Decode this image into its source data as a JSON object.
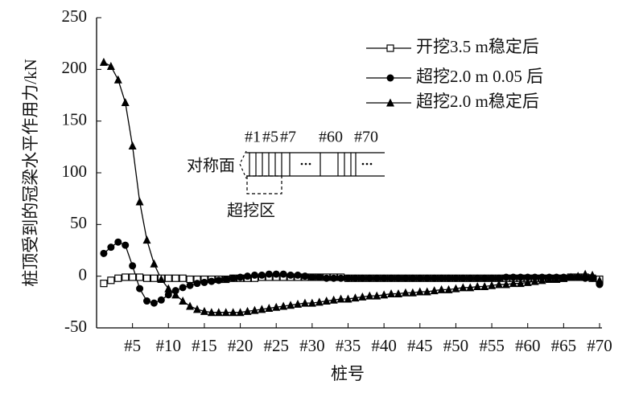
{
  "chart_data": {
    "type": "line",
    "x_label": "桩号",
    "y_label": "桩顶受到的冠梁水平作用力/kN",
    "x": [
      1,
      2,
      3,
      4,
      5,
      6,
      7,
      8,
      9,
      10,
      11,
      12,
      13,
      14,
      15,
      16,
      17,
      18,
      19,
      20,
      21,
      22,
      23,
      24,
      25,
      26,
      27,
      28,
      29,
      30,
      31,
      32,
      33,
      34,
      35,
      36,
      37,
      38,
      39,
      40,
      41,
      42,
      43,
      44,
      45,
      46,
      47,
      48,
      49,
      50,
      51,
      52,
      53,
      54,
      55,
      56,
      57,
      58,
      59,
      60,
      61,
      62,
      63,
      64,
      65,
      66,
      67,
      68,
      69,
      70
    ],
    "series": [
      {
        "name": "开挖3.5 m稳定后",
        "color": "#000000",
        "marker": "square-open",
        "values": [
          -7,
          -4,
          -2,
          -1,
          -1,
          -1,
          -2,
          -2,
          -2,
          -2,
          -2,
          -2,
          -3,
          -3,
          -3,
          -3,
          -3,
          -3,
          -2,
          -2,
          -2,
          -2,
          -1,
          -1,
          -1,
          -1,
          -1,
          -1,
          -1,
          -1,
          -1,
          -1,
          -1,
          -1,
          -2,
          -2,
          -2,
          -2,
          -2,
          -2,
          -2,
          -2,
          -2,
          -2,
          -2,
          -2,
          -2,
          -2,
          -2,
          -2,
          -2,
          -2,
          -2,
          -2,
          -2,
          -2,
          -2,
          -2,
          -2,
          -2,
          -2,
          -2,
          -2,
          -2,
          -2,
          -1,
          -1,
          -1,
          -2,
          -3
        ]
      },
      {
        "name": "超挖2.0 m 0.05 后",
        "color": "#000000",
        "marker": "circle",
        "values": [
          22,
          28,
          33,
          30,
          10,
          -12,
          -24,
          -26,
          -23,
          -18,
          -14,
          -11,
          -9,
          -7,
          -6,
          -5,
          -4,
          -3,
          -2,
          -1,
          0,
          1,
          1,
          2,
          2,
          2,
          1,
          1,
          0,
          -1,
          -1,
          -2,
          -2,
          -2,
          -2,
          -2,
          -2,
          -2,
          -2,
          -2,
          -2,
          -2,
          -2,
          -2,
          -2,
          -2,
          -2,
          -2,
          -2,
          -2,
          -2,
          -2,
          -2,
          -2,
          -2,
          -2,
          -1,
          -1,
          -1,
          -1,
          -1,
          -1,
          -1,
          -1,
          -1,
          -1,
          -1,
          -2,
          -2,
          -8
        ]
      },
      {
        "name": "超挖2.0 m稳定后",
        "color": "#000000",
        "marker": "triangle",
        "values": [
          207,
          203,
          190,
          168,
          126,
          72,
          35,
          12,
          -3,
          -12,
          -18,
          -24,
          -29,
          -32,
          -34,
          -35,
          -35,
          -35,
          -35,
          -35,
          -34,
          -33,
          -32,
          -31,
          -30,
          -29,
          -28,
          -27,
          -26,
          -26,
          -25,
          -24,
          -23,
          -22,
          -22,
          -21,
          -20,
          -19,
          -19,
          -18,
          -17,
          -17,
          -16,
          -16,
          -15,
          -15,
          -14,
          -13,
          -13,
          -12,
          -11,
          -11,
          -10,
          -10,
          -9,
          -8,
          -8,
          -7,
          -7,
          -6,
          -5,
          -4,
          -3,
          -3,
          -2,
          -1,
          0,
          2,
          1,
          -4
        ]
      }
    ],
    "xlim": [
      0,
      70
    ],
    "xticks": [
      {
        "value": 5,
        "label": "#5"
      },
      {
        "value": 10,
        "label": "#10"
      },
      {
        "value": 15,
        "label": "#15"
      },
      {
        "value": 20,
        "label": "#20"
      },
      {
        "value": 25,
        "label": "#25"
      },
      {
        "value": 30,
        "label": "#30"
      },
      {
        "value": 35,
        "label": "#35"
      },
      {
        "value": 40,
        "label": "#40"
      },
      {
        "value": 45,
        "label": "#45"
      },
      {
        "value": 50,
        "label": "#50"
      },
      {
        "value": 55,
        "label": "#55"
      },
      {
        "value": 60,
        "label": "#60"
      },
      {
        "value": 65,
        "label": "#65"
      },
      {
        "value": 70,
        "label": "#70"
      }
    ],
    "ylim": [
      -50,
      250
    ],
    "yticks": [
      -50,
      0,
      50,
      100,
      150,
      200,
      250
    ],
    "legend": "top-right",
    "inset": {
      "symmetry_label": "对称面",
      "overexcavation_label": "超挖区",
      "pile_labels": [
        "#1",
        "#5",
        "#7",
        "#60",
        "#70"
      ]
    }
  }
}
